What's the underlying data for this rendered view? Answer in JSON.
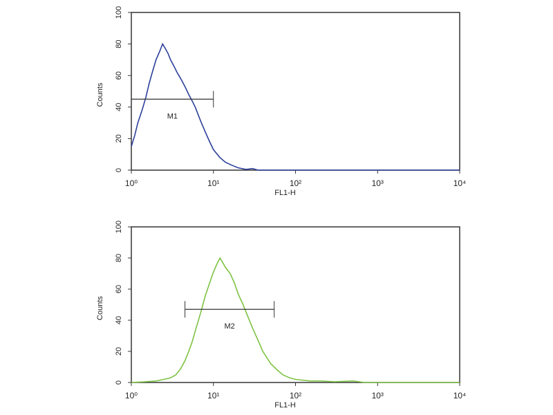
{
  "chart_data": [
    {
      "type": "line",
      "xlabel": "FL1-H",
      "ylabel": "Counts",
      "log_x": true,
      "color": "#2b3f9a",
      "x": [
        1,
        1.1,
        1.2,
        1.35,
        1.5,
        1.65,
        1.8,
        2,
        2.2,
        2.4,
        2.6,
        2.8,
        3,
        3.3,
        3.6,
        4,
        4.5,
        5,
        5.5,
        6,
        7,
        8,
        9,
        10,
        12,
        14,
        17,
        20,
        25,
        30,
        35,
        45,
        100,
        1000,
        10000
      ],
      "values": [
        15,
        22,
        30,
        38,
        46,
        55,
        62,
        70,
        75,
        80,
        77,
        74,
        70,
        66,
        62,
        58,
        53,
        48,
        44,
        40,
        31,
        24,
        18,
        13,
        8,
        5,
        3,
        1.5,
        0.5,
        1,
        0,
        0,
        0,
        0,
        0
      ],
      "xlim": [
        1,
        10000
      ],
      "ylim": [
        0,
        100
      ],
      "xticks": [
        {
          "value": 1,
          "label": "10⁰"
        },
        {
          "value": 10,
          "label": "10¹"
        },
        {
          "value": 100,
          "label": "10²"
        },
        {
          "value": 1000,
          "label": "10³"
        },
        {
          "value": 10000,
          "label": "10⁴"
        }
      ],
      "yticks": [
        0,
        20,
        40,
        60,
        80,
        100
      ],
      "marker": {
        "label": "M1",
        "x": [
          1,
          10
        ],
        "y": 45
      }
    },
    {
      "type": "line",
      "xlabel": "FL1-H",
      "ylabel": "Counts",
      "log_x": true,
      "color": "#7dc242",
      "x": [
        1,
        1.5,
        2,
        2.5,
        3,
        3.5,
        4,
        4.5,
        5,
        5.5,
        6,
        7,
        8,
        9,
        10,
        11,
        12,
        13,
        14,
        16,
        18,
        20,
        23,
        26,
        30,
        35,
        40,
        50,
        60,
        70,
        85,
        100,
        150,
        200,
        300,
        500,
        700,
        1000,
        10000
      ],
      "values": [
        0,
        0.5,
        1,
        2,
        3,
        5,
        9,
        14,
        20,
        26,
        33,
        45,
        56,
        64,
        71,
        76,
        80,
        77,
        74,
        70,
        64,
        57,
        50,
        43,
        35,
        27,
        20,
        12,
        8,
        5,
        3,
        2,
        1,
        1,
        0.5,
        1,
        0,
        0,
        0
      ],
      "xlim": [
        1,
        10000
      ],
      "ylim": [
        0,
        100
      ],
      "xticks": [
        {
          "value": 1,
          "label": "10⁰"
        },
        {
          "value": 10,
          "label": "10¹"
        },
        {
          "value": 100,
          "label": "10²"
        },
        {
          "value": 1000,
          "label": "10³"
        },
        {
          "value": 10000,
          "label": "10⁴"
        }
      ],
      "yticks": [
        0,
        20,
        40,
        60,
        80,
        100
      ],
      "marker": {
        "label": "M2",
        "x": [
          4.5,
          55
        ],
        "y": 47
      }
    }
  ]
}
